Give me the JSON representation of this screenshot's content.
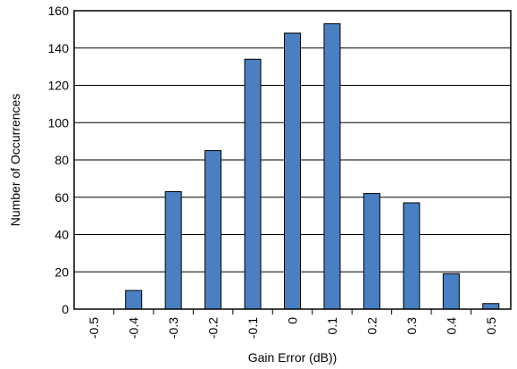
{
  "chart_data": {
    "type": "bar",
    "title": "",
    "xlabel": "Gain Error (dB))",
    "ylabel": "Number of Occurrences",
    "categories": [
      "-0.5",
      "-0.4",
      "-0.3",
      "-0.2",
      "-0.1",
      "0",
      "0.1",
      "0.2",
      "0.3",
      "0.4",
      "0.5"
    ],
    "values": [
      0,
      10,
      63,
      85,
      134,
      148,
      153,
      62,
      57,
      19,
      3
    ],
    "ylim": [
      0,
      160
    ],
    "yticks": [
      "0",
      "20",
      "40",
      "60",
      "80",
      "100",
      "120",
      "140",
      "160"
    ],
    "grid": "horizontal",
    "legend": "none",
    "colors": {
      "bar_fill": "#4a7fc1",
      "bar_stroke": "#000000"
    }
  }
}
